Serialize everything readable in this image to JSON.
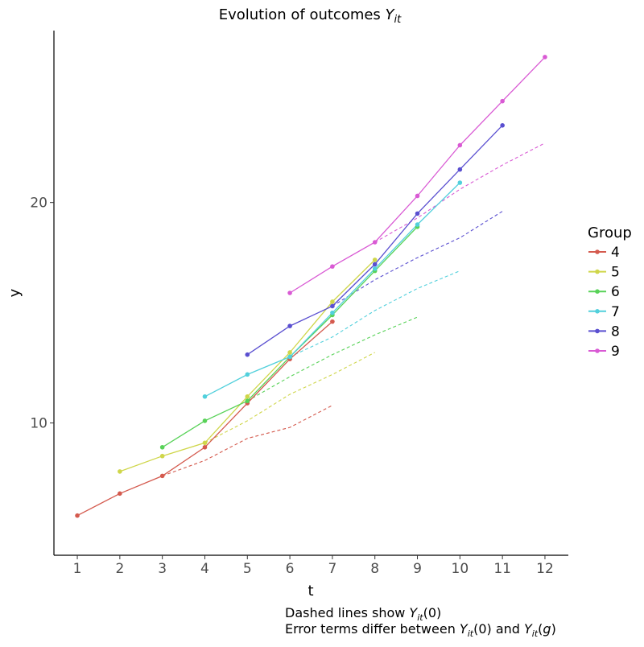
{
  "chart_data": {
    "type": "line",
    "title_main": "Evolution of outcomes ",
    "title_sym": "Y",
    "title_sub": "it",
    "xlabel": "t",
    "ylabel": "y",
    "xlim": [
      0.45,
      12.55
    ],
    "ylim": [
      4.0,
      27.8
    ],
    "x_ticks": [
      1,
      2,
      3,
      4,
      5,
      6,
      7,
      8,
      9,
      10,
      11,
      12
    ],
    "y_ticks": [
      10,
      20
    ],
    "grid": false,
    "legend_title": "Group",
    "legend_position": "right",
    "caption_line1": "Dashed lines show Y_it(0)",
    "caption_line2": "Error terms differ between Y_it(0) and Y_it(g)",
    "series": [
      {
        "name": "4",
        "color": "#d45a4e",
        "observed": {
          "x": [
            1,
            2,
            3,
            4,
            5,
            6,
            7
          ],
          "y": [
            5.8,
            6.8,
            7.6,
            8.9,
            10.9,
            12.9,
            14.6
          ]
        },
        "counterfactual": {
          "x": [
            3,
            4,
            5,
            6,
            7
          ],
          "y": [
            7.6,
            8.3,
            9.3,
            9.8,
            10.8
          ]
        }
      },
      {
        "name": "5",
        "color": "#cfd64a",
        "observed": {
          "x": [
            2,
            3,
            4,
            5,
            6,
            7,
            8
          ],
          "y": [
            7.8,
            8.5,
            9.1,
            11.2,
            13.2,
            15.5,
            17.4
          ]
        },
        "counterfactual": {
          "x": [
            4,
            5,
            6,
            7,
            8
          ],
          "y": [
            9.1,
            10.1,
            11.3,
            12.2,
            13.2
          ]
        }
      },
      {
        "name": "6",
        "color": "#58d258",
        "observed": {
          "x": [
            3,
            4,
            5,
            6,
            7,
            8,
            9
          ],
          "y": [
            8.9,
            10.1,
            11.0,
            13.0,
            14.9,
            16.9,
            18.9
          ]
        },
        "counterfactual": {
          "x": [
            5,
            6,
            7,
            8,
            9
          ],
          "y": [
            11.0,
            12.1,
            13.1,
            14.0,
            14.8
          ]
        }
      },
      {
        "name": "7",
        "color": "#52d0dc",
        "observed": {
          "x": [
            4,
            5,
            6,
            7,
            8,
            9,
            10
          ],
          "y": [
            11.2,
            12.2,
            13.0,
            15.0,
            17.0,
            19.0,
            20.9
          ]
        },
        "counterfactual": {
          "x": [
            6,
            7,
            8,
            9,
            10
          ],
          "y": [
            13.0,
            13.9,
            15.1,
            16.1,
            16.9
          ]
        }
      },
      {
        "name": "8",
        "color": "#5a4fd0",
        "observed": {
          "x": [
            5,
            6,
            7,
            8,
            9,
            10,
            11
          ],
          "y": [
            13.1,
            14.4,
            15.3,
            17.2,
            19.5,
            21.5,
            23.5
          ]
        },
        "counterfactual": {
          "x": [
            7,
            8,
            9,
            10,
            11
          ],
          "y": [
            15.3,
            16.5,
            17.5,
            18.4,
            19.6
          ]
        }
      },
      {
        "name": "9",
        "color": "#d95ad4",
        "observed": {
          "x": [
            6,
            7,
            8,
            9,
            10,
            11,
            12
          ],
          "y": [
            15.9,
            17.1,
            18.2,
            20.3,
            22.6,
            24.6,
            26.6
          ]
        },
        "counterfactual": {
          "x": [
            8,
            9,
            10,
            11,
            12
          ],
          "y": [
            18.2,
            19.3,
            20.6,
            21.7,
            22.7
          ]
        }
      }
    ]
  }
}
